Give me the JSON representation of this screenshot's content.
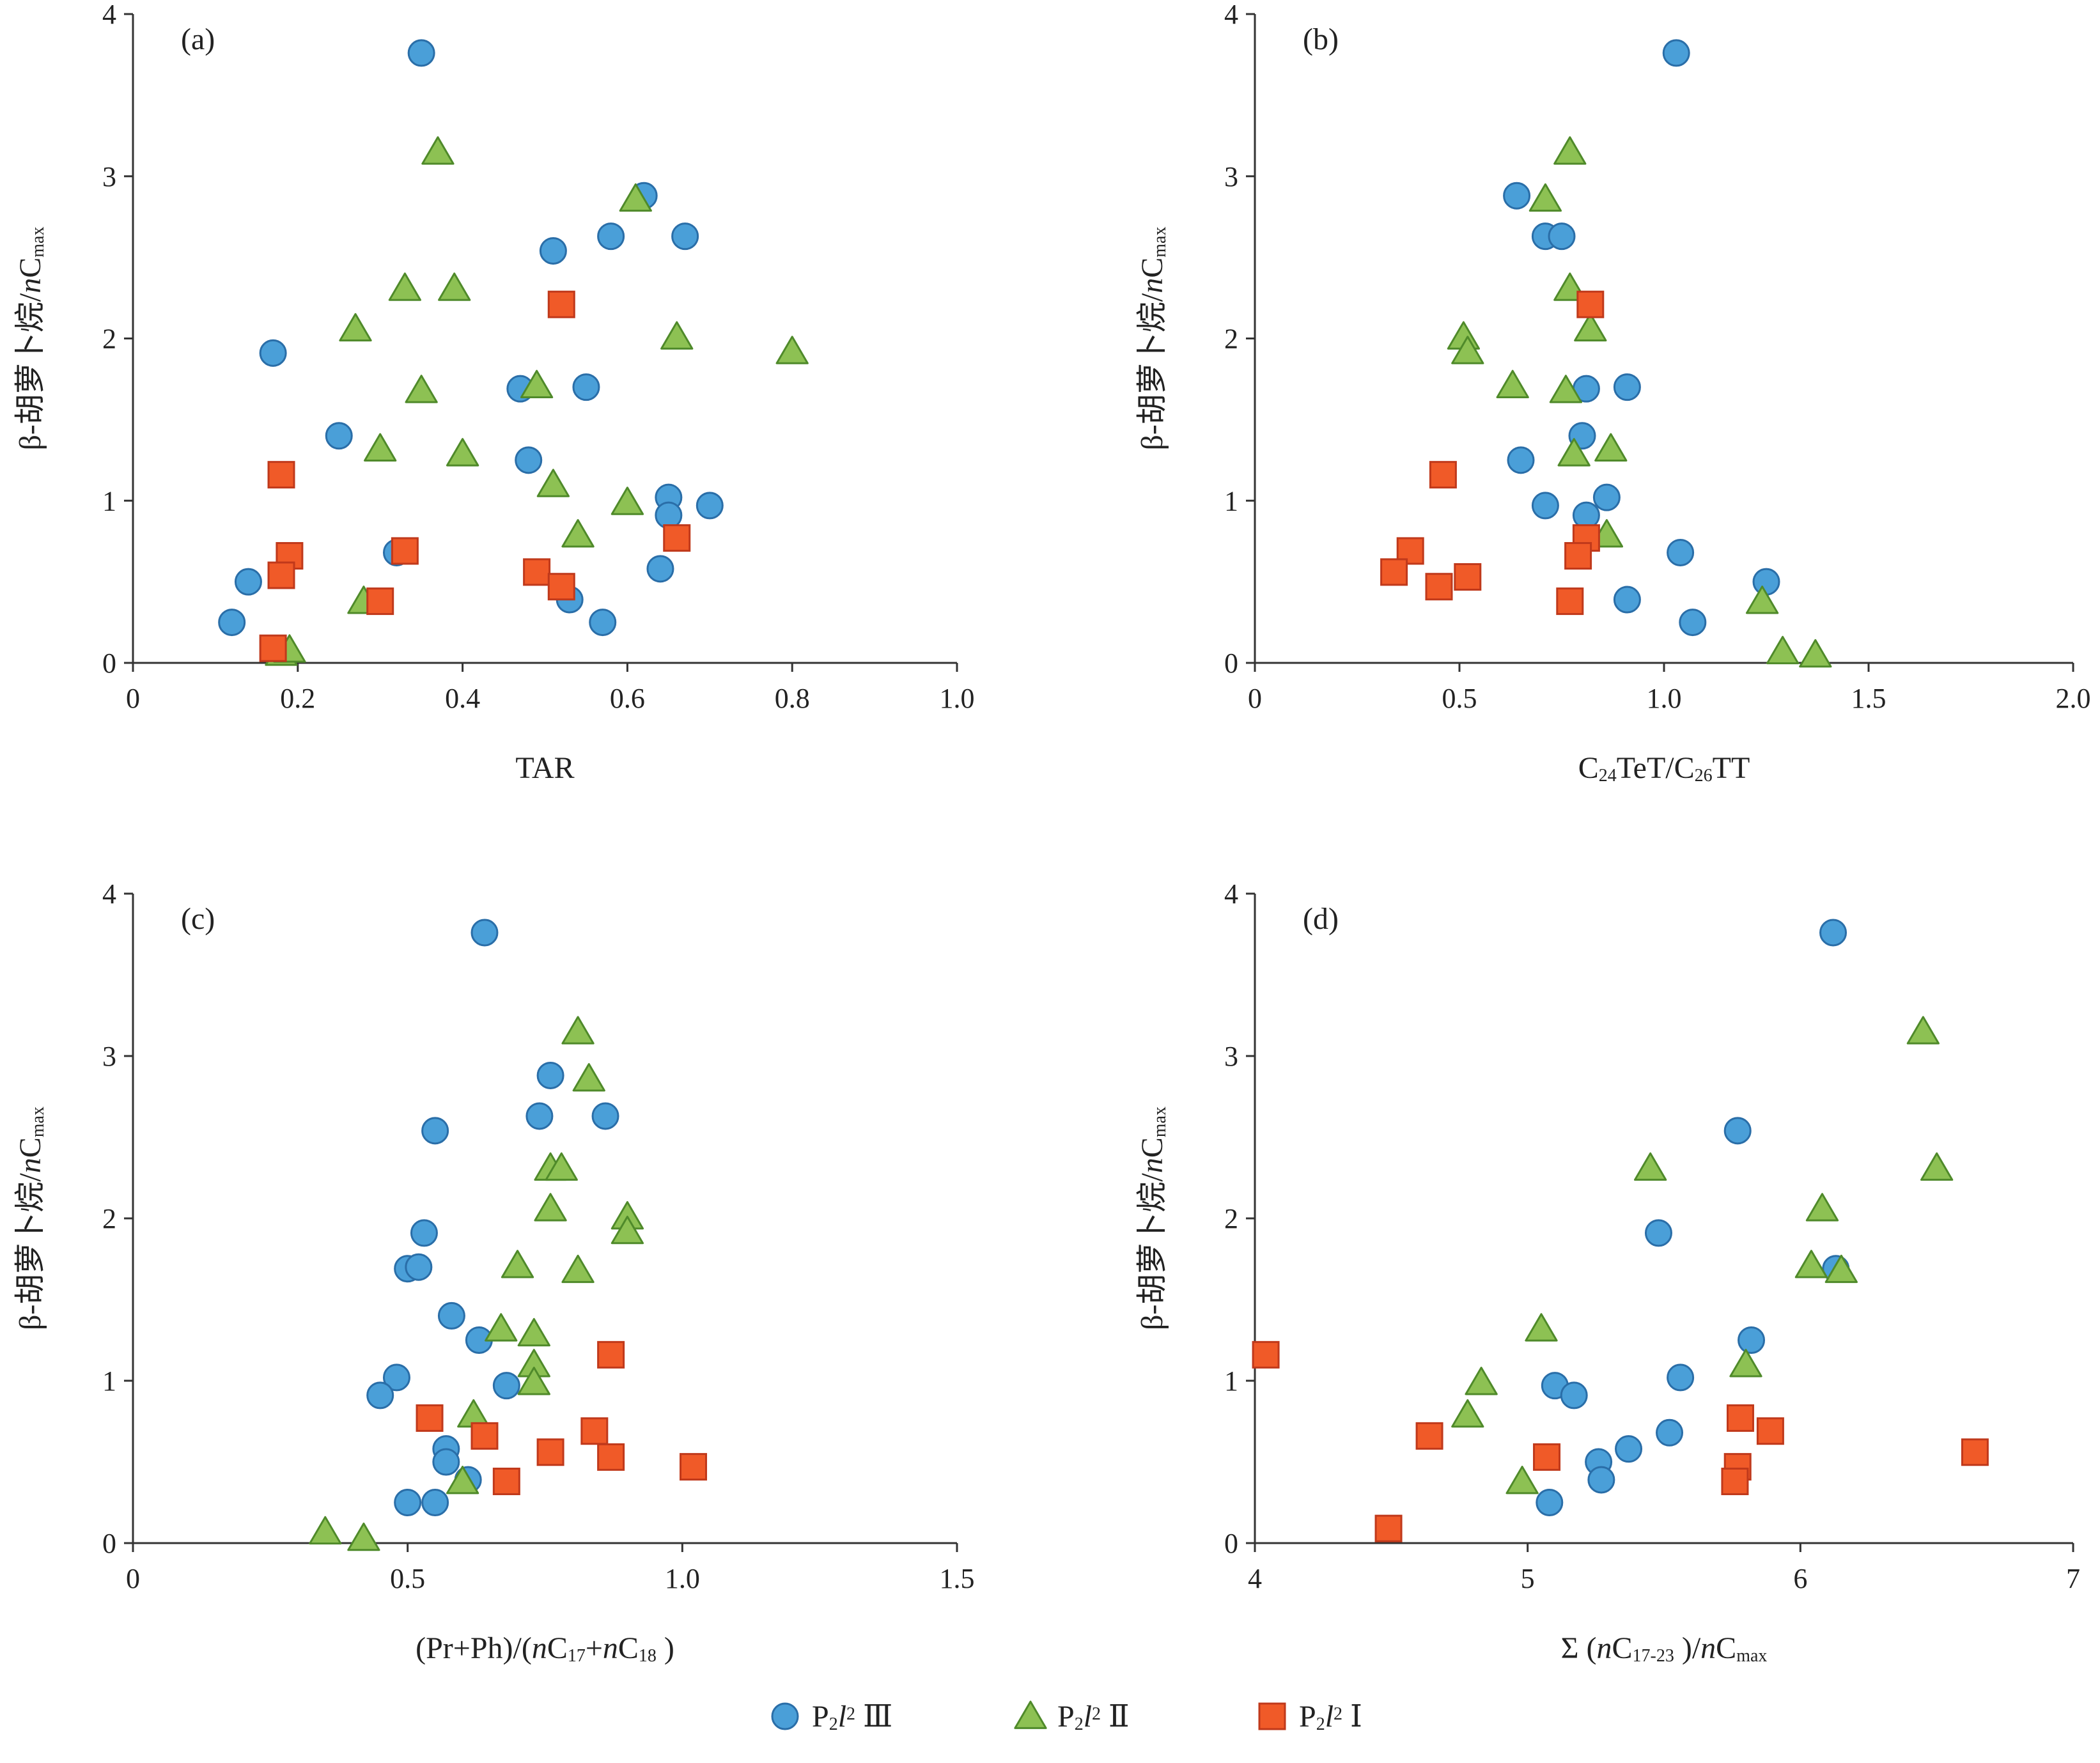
{
  "colors": {
    "p3": {
      "fill": "#4a9fd8",
      "stroke": "#2a6ea8"
    },
    "p2": {
      "fill": "#8dc153",
      "stroke": "#4f8a2a"
    },
    "p1": {
      "fill": "#f05a28",
      "stroke": "#c0391b"
    },
    "axis": "#333333"
  },
  "legend": {
    "placement": "bottom-center",
    "items": [
      {
        "key": "p3",
        "marker": "circle",
        "main": "P",
        "sub": "2",
        "italic": "l",
        "sup": "2",
        "roman": "Ⅲ"
      },
      {
        "key": "p2",
        "marker": "triangle",
        "main": "P",
        "sub": "2",
        "italic": "l",
        "sup": "2",
        "roman": "Ⅱ"
      },
      {
        "key": "p1",
        "marker": "square",
        "main": "P",
        "sub": "2",
        "italic": "l",
        "sup": "2",
        "roman": "Ⅰ"
      }
    ]
  },
  "chart_data": [
    {
      "type": "scatter",
      "panel_label": "(a)",
      "xlabel_parts": [
        {
          "t": "TAR"
        }
      ],
      "ylabel_parts": [
        {
          "t": "β-胡萝卜烷/"
        },
        {
          "t": "n",
          "i": true
        },
        {
          "t": "C"
        },
        {
          "t": "max",
          "s": "sub"
        }
      ],
      "xlim": [
        0,
        1.0
      ],
      "ylim": [
        0,
        4
      ],
      "xticks": [
        0,
        0.2,
        0.4,
        0.6,
        0.8,
        1.0
      ],
      "xtick_labels": [
        "0",
        "0.2",
        "0.4",
        "0.6",
        "0.8",
        "1.0"
      ],
      "yticks": [
        0,
        1,
        2,
        3,
        4
      ],
      "ytick_labels": [
        "0",
        "1",
        "2",
        "3",
        "4"
      ],
      "series": [
        {
          "key": "p3",
          "points": [
            [
              0.35,
              3.76
            ],
            [
              0.62,
              2.88
            ],
            [
              0.58,
              2.63
            ],
            [
              0.67,
              2.63
            ],
            [
              0.51,
              2.54
            ],
            [
              0.17,
              1.91
            ],
            [
              0.47,
              1.69
            ],
            [
              0.55,
              1.7
            ],
            [
              0.25,
              1.4
            ],
            [
              0.48,
              1.25
            ],
            [
              0.65,
              1.02
            ],
            [
              0.7,
              0.97
            ],
            [
              0.65,
              0.91
            ],
            [
              0.32,
              0.68
            ],
            [
              0.64,
              0.58
            ],
            [
              0.14,
              0.5
            ],
            [
              0.53,
              0.39
            ],
            [
              0.12,
              0.25
            ],
            [
              0.57,
              0.25
            ]
          ]
        },
        {
          "key": "p2",
          "points": [
            [
              0.37,
              3.15
            ],
            [
              0.61,
              2.86
            ],
            [
              0.33,
              2.31
            ],
            [
              0.39,
              2.31
            ],
            [
              0.27,
              2.06
            ],
            [
              0.66,
              2.01
            ],
            [
              0.8,
              1.92
            ],
            [
              0.35,
              1.68
            ],
            [
              0.49,
              1.71
            ],
            [
              0.3,
              1.32
            ],
            [
              0.4,
              1.29
            ],
            [
              0.51,
              1.1
            ],
            [
              0.6,
              0.99
            ],
            [
              0.54,
              0.79
            ],
            [
              0.28,
              0.38
            ],
            [
              0.18,
              0.06
            ],
            [
              0.19,
              0.08
            ]
          ]
        },
        {
          "key": "p1",
          "points": [
            [
              0.52,
              2.21
            ],
            [
              0.18,
              1.16
            ],
            [
              0.19,
              0.66
            ],
            [
              0.18,
              0.54
            ],
            [
              0.33,
              0.69
            ],
            [
              0.66,
              0.77
            ],
            [
              0.49,
              0.56
            ],
            [
              0.52,
              0.47
            ],
            [
              0.3,
              0.38
            ],
            [
              0.17,
              0.09
            ]
          ]
        }
      ]
    },
    {
      "type": "scatter",
      "panel_label": "(b)",
      "xlabel_parts": [
        {
          "t": "C"
        },
        {
          "t": "24",
          "s": "sub"
        },
        {
          "t": "TeT/C"
        },
        {
          "t": "26",
          "s": "sub"
        },
        {
          "t": "TT"
        }
      ],
      "ylabel_parts": [
        {
          "t": "β-胡萝卜烷/"
        },
        {
          "t": "n",
          "i": true
        },
        {
          "t": "C"
        },
        {
          "t": "max",
          "s": "sub"
        }
      ],
      "xlim": [
        0,
        2.0
      ],
      "ylim": [
        0,
        4
      ],
      "xticks": [
        0,
        0.5,
        1.0,
        1.5,
        2.0
      ],
      "xtick_labels": [
        "0",
        "0.5",
        "1.0",
        "1.5",
        "2.0"
      ],
      "yticks": [
        0,
        1,
        2,
        3,
        4
      ],
      "ytick_labels": [
        "0",
        "1",
        "2",
        "3",
        "4"
      ],
      "series": [
        {
          "key": "p3",
          "points": [
            [
              1.03,
              3.76
            ],
            [
              0.64,
              2.88
            ],
            [
              0.71,
              2.63
            ],
            [
              0.75,
              2.63
            ],
            [
              0.81,
              1.69
            ],
            [
              0.91,
              1.7
            ],
            [
              0.8,
              1.4
            ],
            [
              0.65,
              1.25
            ],
            [
              0.86,
              1.02
            ],
            [
              0.71,
              0.97
            ],
            [
              0.81,
              0.91
            ],
            [
              1.04,
              0.68
            ],
            [
              1.25,
              0.5
            ],
            [
              0.91,
              0.39
            ],
            [
              1.07,
              0.25
            ]
          ]
        },
        {
          "key": "p2",
          "points": [
            [
              0.77,
              3.15
            ],
            [
              0.71,
              2.86
            ],
            [
              0.77,
              2.31
            ],
            [
              0.82,
              2.06
            ],
            [
              0.51,
              2.01
            ],
            [
              0.52,
              1.92
            ],
            [
              0.63,
              1.71
            ],
            [
              0.76,
              1.68
            ],
            [
              0.87,
              1.32
            ],
            [
              0.78,
              1.29
            ],
            [
              0.86,
              0.79
            ],
            [
              1.24,
              0.38
            ],
            [
              1.29,
              0.07
            ],
            [
              1.37,
              0.05
            ]
          ]
        },
        {
          "key": "p1",
          "points": [
            [
              0.82,
              2.21
            ],
            [
              0.46,
              1.16
            ],
            [
              0.38,
              0.69
            ],
            [
              0.81,
              0.77
            ],
            [
              0.79,
              0.66
            ],
            [
              0.34,
              0.56
            ],
            [
              0.52,
              0.53
            ],
            [
              0.45,
              0.47
            ],
            [
              0.77,
              0.38
            ]
          ]
        }
      ]
    },
    {
      "type": "scatter",
      "panel_label": "(c)",
      "xlabel_parts": [
        {
          "t": "(Pr+Ph)/("
        },
        {
          "t": "n",
          "i": true
        },
        {
          "t": "C"
        },
        {
          "t": "17",
          "s": "sub"
        },
        {
          "t": "+"
        },
        {
          "t": "n",
          "i": true
        },
        {
          "t": "C"
        },
        {
          "t": "18",
          "s": "sub"
        },
        {
          "t": " )"
        }
      ],
      "ylabel_parts": [
        {
          "t": "β-胡萝卜烷/"
        },
        {
          "t": "n",
          "i": true
        },
        {
          "t": "C"
        },
        {
          "t": "max",
          "s": "sub"
        }
      ],
      "xlim": [
        0,
        1.5
      ],
      "ylim": [
        0,
        4
      ],
      "xticks": [
        0,
        0.5,
        1.0,
        1.5
      ],
      "xtick_labels": [
        "0",
        "0.5",
        "1.0",
        "1.5"
      ],
      "yticks": [
        0,
        1,
        2,
        3,
        4
      ],
      "ytick_labels": [
        "0",
        "1",
        "2",
        "3",
        "4"
      ],
      "series": [
        {
          "key": "p3",
          "points": [
            [
              0.64,
              3.76
            ],
            [
              0.76,
              2.88
            ],
            [
              0.74,
              2.63
            ],
            [
              0.86,
              2.63
            ],
            [
              0.55,
              2.54
            ],
            [
              0.53,
              1.91
            ],
            [
              0.5,
              1.69
            ],
            [
              0.52,
              1.7
            ],
            [
              0.58,
              1.4
            ],
            [
              0.63,
              1.25
            ],
            [
              0.48,
              1.02
            ],
            [
              0.68,
              0.97
            ],
            [
              0.45,
              0.91
            ],
            [
              0.57,
              0.58
            ],
            [
              0.57,
              0.5
            ],
            [
              0.61,
              0.39
            ],
            [
              0.5,
              0.25
            ],
            [
              0.55,
              0.25
            ]
          ]
        },
        {
          "key": "p2",
          "points": [
            [
              0.81,
              3.15
            ],
            [
              0.83,
              2.86
            ],
            [
              0.76,
              2.31
            ],
            [
              0.78,
              2.31
            ],
            [
              0.76,
              2.06
            ],
            [
              0.9,
              2.01
            ],
            [
              0.9,
              1.92
            ],
            [
              0.7,
              1.71
            ],
            [
              0.81,
              1.68
            ],
            [
              0.67,
              1.32
            ],
            [
              0.73,
              1.29
            ],
            [
              0.73,
              1.1
            ],
            [
              0.73,
              0.99
            ],
            [
              0.62,
              0.79
            ],
            [
              0.6,
              0.38
            ],
            [
              0.35,
              0.07
            ],
            [
              0.42,
              0.03
            ]
          ]
        },
        {
          "key": "p1",
          "points": [
            [
              0.87,
              1.16
            ],
            [
              0.54,
              0.77
            ],
            [
              0.64,
              0.66
            ],
            [
              0.84,
              0.69
            ],
            [
              0.76,
              0.56
            ],
            [
              0.87,
              0.53
            ],
            [
              1.02,
              0.47
            ],
            [
              0.68,
              0.38
            ]
          ]
        }
      ]
    },
    {
      "type": "scatter",
      "panel_label": "(d)",
      "xlabel_parts": [
        {
          "t": "Σ ("
        },
        {
          "t": "n",
          "i": true
        },
        {
          "t": "C"
        },
        {
          "t": "17-23",
          "s": "sub"
        },
        {
          "t": " )/"
        },
        {
          "t": "n",
          "i": true
        },
        {
          "t": "C"
        },
        {
          "t": "max",
          "s": "sub"
        }
      ],
      "ylabel_parts": [
        {
          "t": "β-胡萝卜烷/"
        },
        {
          "t": "n",
          "i": true
        },
        {
          "t": "C"
        },
        {
          "t": "max",
          "s": "sub"
        }
      ],
      "xlim": [
        4,
        7
      ],
      "ylim": [
        0,
        4
      ],
      "xticks": [
        4,
        5,
        6,
        7
      ],
      "xtick_labels": [
        "4",
        "5",
        "6",
        "7"
      ],
      "yticks": [
        0,
        1,
        2,
        3,
        4
      ],
      "ytick_labels": [
        "0",
        "1",
        "2",
        "3",
        "4"
      ],
      "series": [
        {
          "key": "p3",
          "points": [
            [
              6.12,
              3.76
            ],
            [
              5.77,
              2.54
            ],
            [
              5.48,
              1.91
            ],
            [
              6.13,
              1.69
            ],
            [
              5.82,
              1.25
            ],
            [
              5.56,
              1.02
            ],
            [
              5.1,
              0.97
            ],
            [
              5.17,
              0.91
            ],
            [
              5.52,
              0.68
            ],
            [
              5.37,
              0.58
            ],
            [
              5.26,
              0.5
            ],
            [
              5.27,
              0.39
            ],
            [
              5.08,
              0.25
            ]
          ]
        },
        {
          "key": "p2",
          "points": [
            [
              6.45,
              3.15
            ],
            [
              5.45,
              2.31
            ],
            [
              6.5,
              2.31
            ],
            [
              6.08,
              2.06
            ],
            [
              6.04,
              1.71
            ],
            [
              6.15,
              1.68
            ],
            [
              5.05,
              1.32
            ],
            [
              5.8,
              1.1
            ],
            [
              4.83,
              0.99
            ],
            [
              4.78,
              0.79
            ],
            [
              4.98,
              0.38
            ]
          ]
        },
        {
          "key": "p1",
          "points": [
            [
              4.04,
              1.16
            ],
            [
              4.64,
              0.66
            ],
            [
              5.78,
              0.77
            ],
            [
              5.89,
              0.69
            ],
            [
              5.07,
              0.53
            ],
            [
              5.77,
              0.47
            ],
            [
              6.64,
              0.56
            ],
            [
              5.76,
              0.38
            ],
            [
              4.49,
              0.09
            ]
          ]
        }
      ]
    }
  ]
}
